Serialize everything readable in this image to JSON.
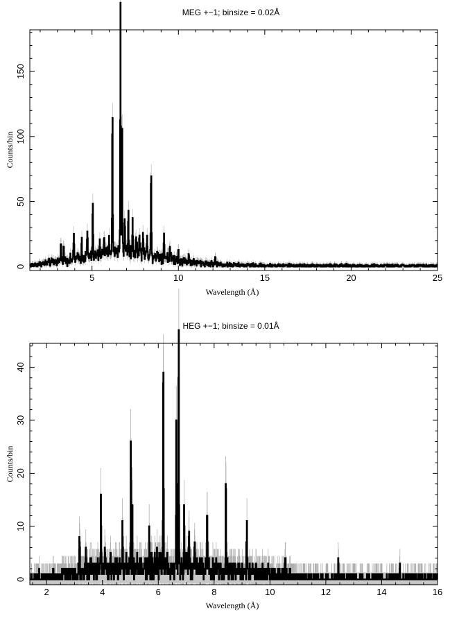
{
  "chart_data": [
    {
      "type": "histogram",
      "title": "MEG +−1; binsize = 0.02Å",
      "xlabel": "Wavelength (Å)",
      "ylabel": "Counts/bin",
      "xlim": [
        1.4,
        25
      ],
      "ylim": [
        -3,
        182
      ],
      "xticks": [
        5,
        10,
        15,
        20,
        25
      ],
      "yticks": [
        0,
        50,
        100,
        150
      ],
      "grid": false,
      "legend": "none",
      "continuum": [
        [
          1.4,
          1
        ],
        [
          2.0,
          2
        ],
        [
          3.0,
          4
        ],
        [
          4.0,
          6
        ],
        [
          5.0,
          8
        ],
        [
          5.8,
          10
        ],
        [
          6.5,
          13
        ],
        [
          7.0,
          12
        ],
        [
          8.0,
          10
        ],
        [
          9.0,
          8
        ],
        [
          10.0,
          5
        ],
        [
          11.0,
          3
        ],
        [
          12.0,
          2
        ],
        [
          13.0,
          1.2
        ],
        [
          15.0,
          0.8
        ],
        [
          20.0,
          0.6
        ],
        [
          25.0,
          0.5
        ]
      ],
      "lines": [
        [
          6.18,
          110
        ],
        [
          6.65,
          176
        ],
        [
          6.74,
          110
        ],
        [
          8.42,
          61
        ],
        [
          5.04,
          38
        ],
        [
          7.1,
          29
        ],
        [
          7.35,
          27
        ],
        [
          6.9,
          26
        ],
        [
          7.75,
          22
        ],
        [
          9.17,
          18
        ],
        [
          3.95,
          19
        ],
        [
          4.73,
          21
        ],
        [
          5.7,
          18
        ],
        [
          3.2,
          13
        ],
        [
          3.35,
          12
        ],
        [
          4.4,
          12
        ],
        [
          5.45,
          12
        ],
        [
          6.0,
          13
        ],
        [
          7.55,
          15
        ],
        [
          7.95,
          17
        ],
        [
          8.2,
          14
        ],
        [
          9.5,
          10
        ],
        [
          10.0,
          7
        ],
        [
          10.6,
          5
        ],
        [
          12.13,
          6
        ]
      ]
    },
    {
      "type": "histogram",
      "title": "HEG +−1; binsize = 0.01Å",
      "xlabel": "Wavelength (Å)",
      "ylabel": "Counts/bin",
      "xlim": [
        1.4,
        16
      ],
      "ylim": [
        -1,
        44.5
      ],
      "xticks": [
        2,
        4,
        6,
        8,
        10,
        12,
        14,
        16
      ],
      "yticks": [
        0,
        10,
        20,
        30,
        40
      ],
      "grid": false,
      "legend": "none",
      "continuum": [
        [
          1.4,
          0.3
        ],
        [
          2.0,
          0.6
        ],
        [
          3.0,
          1.2
        ],
        [
          4.0,
          1.8
        ],
        [
          5.0,
          2.2
        ],
        [
          6.0,
          2.6
        ],
        [
          7.0,
          2.4
        ],
        [
          8.0,
          2.0
        ],
        [
          9.0,
          1.4
        ],
        [
          10.0,
          0.8
        ],
        [
          11.0,
          0.4
        ],
        [
          12.0,
          0.25
        ],
        [
          14.0,
          0.15
        ],
        [
          16.0,
          0.1
        ]
      ],
      "lines": [
        [
          6.18,
          41
        ],
        [
          6.73,
          43
        ],
        [
          6.65,
          26
        ],
        [
          5.02,
          22
        ],
        [
          5.07,
          12
        ],
        [
          8.42,
          20
        ],
        [
          3.95,
          10
        ],
        [
          6.93,
          10
        ],
        [
          9.17,
          9
        ],
        [
          3.18,
          9
        ],
        [
          7.1,
          8
        ],
        [
          7.3,
          7
        ],
        [
          7.75,
          7
        ],
        [
          3.4,
          7
        ],
        [
          4.1,
          6
        ],
        [
          4.72,
          7
        ],
        [
          5.68,
          6
        ],
        [
          10.55,
          4
        ],
        [
          12.45,
          3
        ],
        [
          14.65,
          2
        ]
      ]
    }
  ]
}
